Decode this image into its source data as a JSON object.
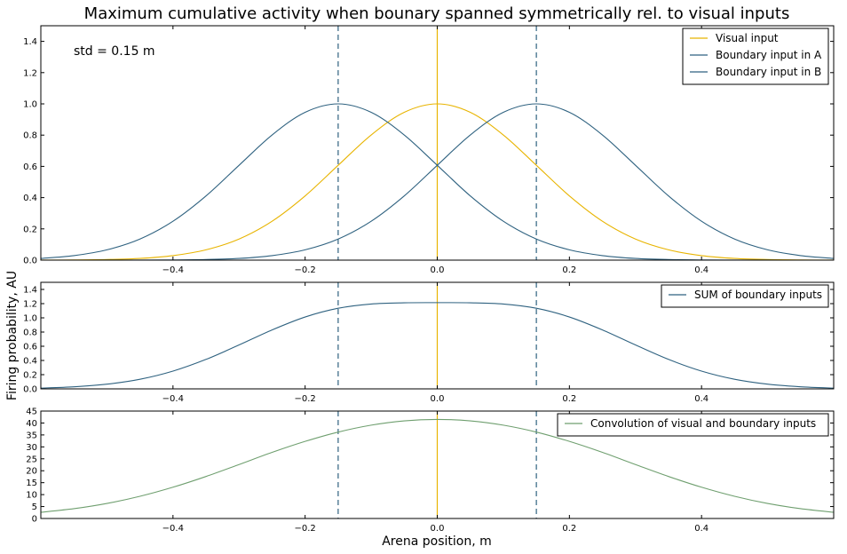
{
  "title": "Maximum cumulative activity when bounary spanned symmetrically rel. to visual inputs",
  "xlabel": "Arena position, m",
  "ylabel": "Firing probability, AU",
  "colors": {
    "visual": "#e8b400",
    "boundary": "#2f6280",
    "convolution": "#6f9f6f"
  },
  "chart_data": [
    {
      "type": "line",
      "annotation": "std = 0.15 m",
      "xlim": [
        -0.6,
        0.6
      ],
      "ylim": [
        0,
        1.5
      ],
      "xticks": [
        "-0.4",
        "-0.2",
        "0.0",
        "0.2",
        "0.4"
      ],
      "yticks": [
        "0.0",
        "0.2",
        "0.4",
        "0.6",
        "0.8",
        "1.0",
        "1.2",
        "1.4"
      ],
      "vlines": {
        "solid": [
          0.0
        ],
        "dashed": [
          -0.15,
          0.15
        ]
      },
      "x": [
        -0.6,
        -0.55,
        -0.5,
        -0.45,
        -0.4,
        -0.35,
        -0.3,
        -0.25,
        -0.2,
        -0.15,
        -0.1,
        -0.05,
        0.0,
        0.05,
        0.1,
        0.15,
        0.2,
        0.25,
        0.3,
        0.35,
        0.4,
        0.45,
        0.5,
        0.55,
        0.6
      ],
      "series": [
        {
          "name": "Visual input",
          "color": "visual",
          "values": [
            0.0003,
            0.0012,
            0.0039,
            0.011,
            0.029,
            0.066,
            0.135,
            0.249,
            0.411,
            0.607,
            0.801,
            0.946,
            1.0,
            0.946,
            0.801,
            0.607,
            0.411,
            0.249,
            0.135,
            0.066,
            0.029,
            0.011,
            0.0039,
            0.0012,
            0.0003
          ]
        },
        {
          "name": "Boundary input in A",
          "color": "boundary",
          "values": [
            0.011,
            0.029,
            0.066,
            0.135,
            0.249,
            0.411,
            0.607,
            0.801,
            0.946,
            1.0,
            0.946,
            0.801,
            0.607,
            0.411,
            0.249,
            0.135,
            0.066,
            0.029,
            0.011,
            0.0039,
            0.0012,
            0.0003,
            0.0001,
            0.0,
            0.0
          ]
        },
        {
          "name": "Boundary input in B",
          "color": "boundary",
          "values": [
            0.0,
            0.0,
            0.0001,
            0.0003,
            0.0012,
            0.0039,
            0.011,
            0.029,
            0.066,
            0.135,
            0.249,
            0.411,
            0.607,
            0.801,
            0.946,
            1.0,
            0.946,
            0.801,
            0.607,
            0.411,
            0.249,
            0.135,
            0.066,
            0.029,
            0.011
          ]
        }
      ]
    },
    {
      "type": "line",
      "xlim": [
        -0.6,
        0.6
      ],
      "ylim": [
        0,
        1.5
      ],
      "xticks": [
        "-0.4",
        "-0.2",
        "0.0",
        "0.2",
        "0.4"
      ],
      "yticks": [
        "0.0",
        "0.2",
        "0.4",
        "0.6",
        "0.8",
        "1.0",
        "1.2",
        "1.4"
      ],
      "vlines": {
        "solid": [
          0.0
        ],
        "dashed": [
          -0.15,
          0.15
        ]
      },
      "x": [
        -0.6,
        -0.55,
        -0.5,
        -0.45,
        -0.4,
        -0.35,
        -0.3,
        -0.25,
        -0.2,
        -0.15,
        -0.1,
        -0.05,
        0.0,
        0.05,
        0.1,
        0.15,
        0.2,
        0.25,
        0.3,
        0.35,
        0.4,
        0.45,
        0.5,
        0.55,
        0.6
      ],
      "series": [
        {
          "name": "SUM of boundary inputs",
          "color": "boundary",
          "values": [
            0.011,
            0.029,
            0.066,
            0.135,
            0.25,
            0.415,
            0.618,
            0.83,
            1.012,
            1.135,
            1.195,
            1.212,
            1.214,
            1.212,
            1.195,
            1.135,
            1.012,
            0.83,
            0.618,
            0.415,
            0.25,
            0.135,
            0.066,
            0.029,
            0.011
          ]
        }
      ]
    },
    {
      "type": "line",
      "xlim": [
        -0.6,
        0.6
      ],
      "ylim": [
        0,
        45
      ],
      "xticks": [
        "-0.4",
        "-0.2",
        "0.0",
        "0.2",
        "0.4"
      ],
      "yticks": [
        "0",
        "5",
        "10",
        "15",
        "20",
        "25",
        "30",
        "35",
        "40",
        "45"
      ],
      "vlines": {
        "solid": [
          0.0
        ],
        "dashed": [
          -0.15,
          0.15
        ]
      },
      "x": [
        -0.6,
        -0.55,
        -0.5,
        -0.45,
        -0.4,
        -0.35,
        -0.3,
        -0.25,
        -0.2,
        -0.15,
        -0.1,
        -0.05,
        0.0,
        0.05,
        0.1,
        0.15,
        0.2,
        0.25,
        0.3,
        0.35,
        0.4,
        0.45,
        0.5,
        0.55,
        0.6
      ],
      "series": [
        {
          "name": "Convolution of visual and boundary inputs",
          "color": "convolution",
          "values": [
            2.6,
            4.1,
            6.3,
            9.3,
            13.1,
            17.6,
            22.6,
            27.7,
            32.3,
            36.2,
            39.1,
            40.9,
            41.5,
            40.9,
            39.1,
            36.2,
            32.3,
            27.7,
            22.6,
            17.6,
            13.1,
            9.3,
            6.3,
            4.1,
            2.6
          ]
        }
      ]
    }
  ]
}
